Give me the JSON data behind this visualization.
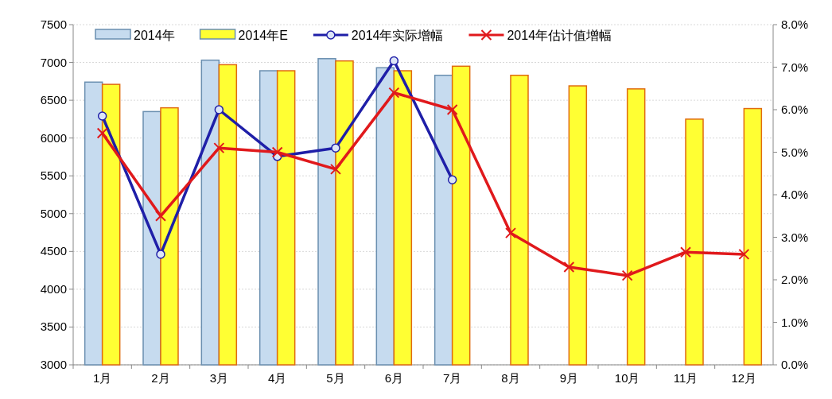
{
  "chart_data": {
    "type": "bar",
    "categories": [
      "1月",
      "2月",
      "3月",
      "4月",
      "5月",
      "6月",
      "7月",
      "8月",
      "9月",
      "10月",
      "11月",
      "12月"
    ],
    "series": [
      {
        "name": "2014年",
        "color": "#c6dbef",
        "values": [
          6740,
          6350,
          7030,
          6890,
          7050,
          6930,
          6830,
          null,
          null,
          null,
          null,
          null
        ]
      },
      {
        "name": "2014年E",
        "color": "#ffff33",
        "values": [
          6710,
          6400,
          6970,
          6890,
          7020,
          6890,
          6950,
          6830,
          6690,
          6650,
          6250,
          6390
        ]
      },
      {
        "name": "2014年实际增幅",
        "type": "line",
        "axis": "y2",
        "color": "#1f1fa8",
        "marker": "circle",
        "values": [
          5.85,
          2.6,
          6.0,
          4.9,
          5.1,
          7.15,
          4.35,
          null,
          null,
          null,
          null,
          null
        ]
      },
      {
        "name": "2014年估计值增幅",
        "type": "line",
        "axis": "y2",
        "color": "#e0191c",
        "marker": "cross",
        "values": [
          5.45,
          3.5,
          5.1,
          5.0,
          4.6,
          6.4,
          6.0,
          3.1,
          2.3,
          2.1,
          2.65,
          2.6
        ]
      }
    ],
    "ylim": [
      3000,
      7500
    ],
    "yticks": [
      3000,
      3500,
      4000,
      4500,
      5000,
      5500,
      6000,
      6500,
      7000,
      7500
    ],
    "y2lim": [
      0,
      8
    ],
    "y2ticks": [
      {
        "value": 0,
        "label": "0.0%"
      },
      {
        "value": 1,
        "label": "1.0%"
      },
      {
        "value": 2,
        "label": "2.0%"
      },
      {
        "value": 3,
        "label": "3.0%"
      },
      {
        "value": 4,
        "label": "4.0%"
      },
      {
        "value": 5,
        "label": "5.0%"
      },
      {
        "value": 6,
        "label": "6.0%"
      },
      {
        "value": 7,
        "label": "7.0%"
      },
      {
        "value": 8,
        "label": "8.0%"
      }
    ],
    "grid": "y",
    "legend": "top"
  }
}
